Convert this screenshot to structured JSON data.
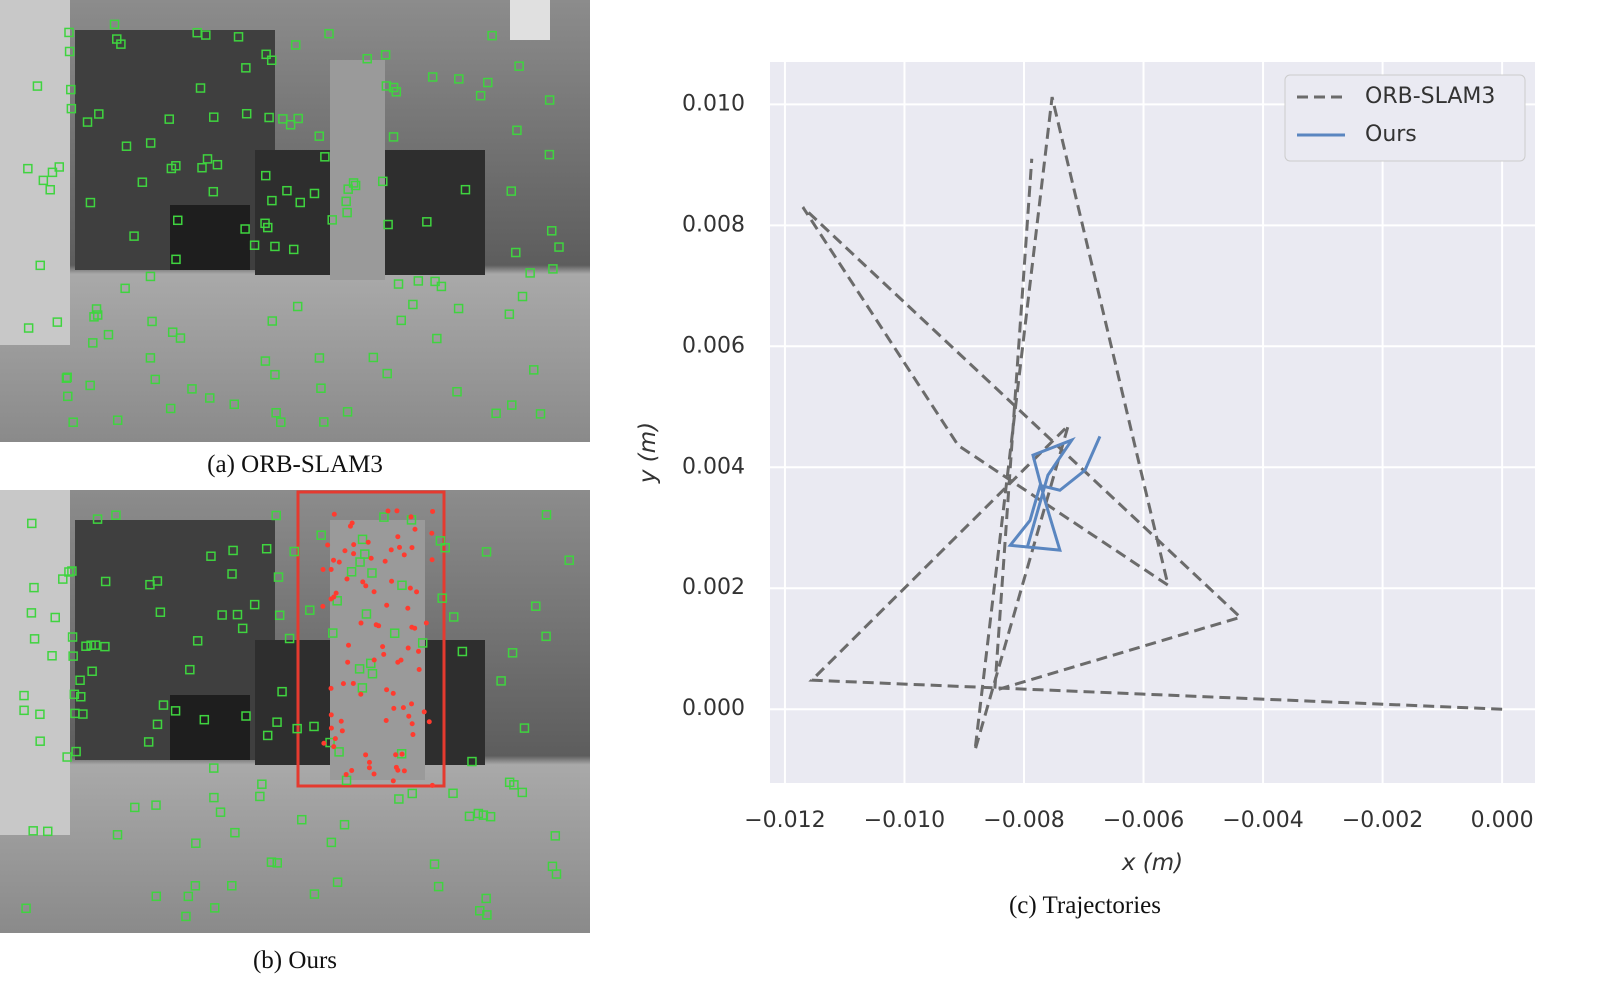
{
  "figure": {
    "panels": [
      {
        "caption": "(a) ORB-SLAM3"
      },
      {
        "caption": "(b) Ours"
      }
    ]
  },
  "chart_data": {
    "type": "line",
    "caption": "(c) Trajectories",
    "xlabel": "x (m)",
    "ylabel": "y (m)",
    "xlim": [
      -0.01225,
      0.00055
    ],
    "ylim": [
      -0.00122,
      0.0107
    ],
    "xticks": [
      {
        "value": -0.012,
        "label": "−0.012"
      },
      {
        "value": -0.01,
        "label": "−0.010"
      },
      {
        "value": -0.008,
        "label": "−0.008"
      },
      {
        "value": -0.006,
        "label": "−0.006"
      },
      {
        "value": -0.004,
        "label": "−0.004"
      },
      {
        "value": -0.002,
        "label": "−0.002"
      },
      {
        "value": 0,
        "label": "0.000"
      }
    ],
    "yticks": [
      {
        "value": 0,
        "label": "0.000"
      },
      0.002,
      0.004,
      0.006,
      0.008,
      {
        "value": 0.01,
        "label": "0.010"
      }
    ],
    "grid": true,
    "legend": "upper right",
    "series": [
      {
        "name": "ORB-SLAM3",
        "color": "#6b6b6b",
        "linestyle": "dashed",
        "x": [
          0.0,
          -0.01155,
          -0.00726,
          -0.00882,
          -0.00753,
          -0.00559,
          -0.0091,
          -0.0117,
          -0.00438,
          -0.00849,
          -0.00787
        ],
        "values": [
          0.0,
          0.00048,
          0.00469,
          -0.00068,
          0.01012,
          0.00205,
          0.00436,
          0.0083,
          0.00152,
          0.00031,
          0.0091
        ]
      },
      {
        "name": "Ours",
        "color": "#5a86c0",
        "linestyle": "solid",
        "x": [
          -0.00673,
          -0.00698,
          -0.0074,
          -0.00773,
          -0.0079,
          -0.00823,
          -0.0074,
          -0.00765,
          -0.00785,
          -0.0072,
          -0.0076,
          -0.00795
        ],
        "values": [
          0.00451,
          0.00395,
          0.00362,
          0.0037,
          0.00312,
          0.00271,
          0.00263,
          0.00345,
          0.0042,
          0.00445,
          0.00387,
          0.00266
        ]
      }
    ]
  }
}
